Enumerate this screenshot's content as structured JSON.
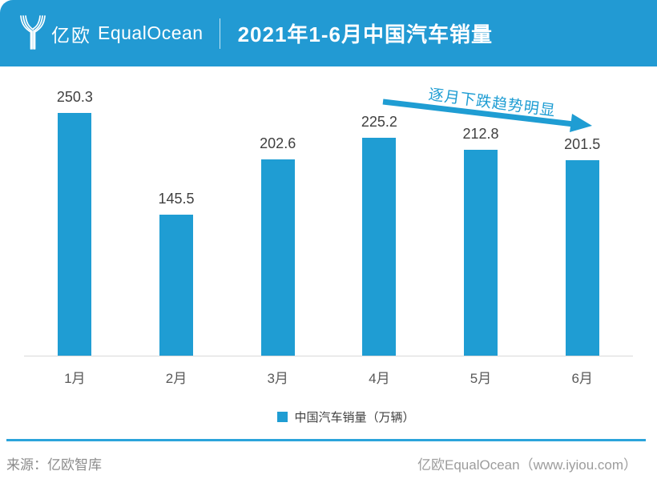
{
  "header": {
    "logo_text_cn": "亿欧",
    "logo_text_en": "EqualOcean",
    "title": "2021年1-6月中国汽车销量"
  },
  "chart_data": {
    "type": "bar",
    "title": "2021年1-6月中国汽车销量",
    "categories": [
      "1月",
      "2月",
      "3月",
      "4月",
      "5月",
      "6月"
    ],
    "values": [
      250.3,
      145.5,
      202.6,
      225.2,
      212.8,
      201.5
    ],
    "series_name": "中国汽车销量（万辆）",
    "annotation": "逐月下跌趋势明显",
    "xlabel": "",
    "ylabel": "",
    "ylim": [
      0,
      282
    ],
    "grid": false,
    "value_labels": true,
    "legend_position": "bottom",
    "bar_color": "#1F9DD3"
  },
  "legend": {
    "label": "中国汽车销量（万辆）"
  },
  "annotation": {
    "label": "逐月下跌趋势明显"
  },
  "footer": {
    "source": "来源：亿欧智库",
    "credit": "亿欧EqualOcean（www.iyiou.com）"
  },
  "colors": {
    "header_bg": "#229AD3",
    "bar": "#1F9DD3",
    "accent_line": "#2BA4DB",
    "value_label": "#404040",
    "month_label": "#595959",
    "axis_line": "#D9D9D9",
    "footer_text": "#8C8C8C"
  }
}
